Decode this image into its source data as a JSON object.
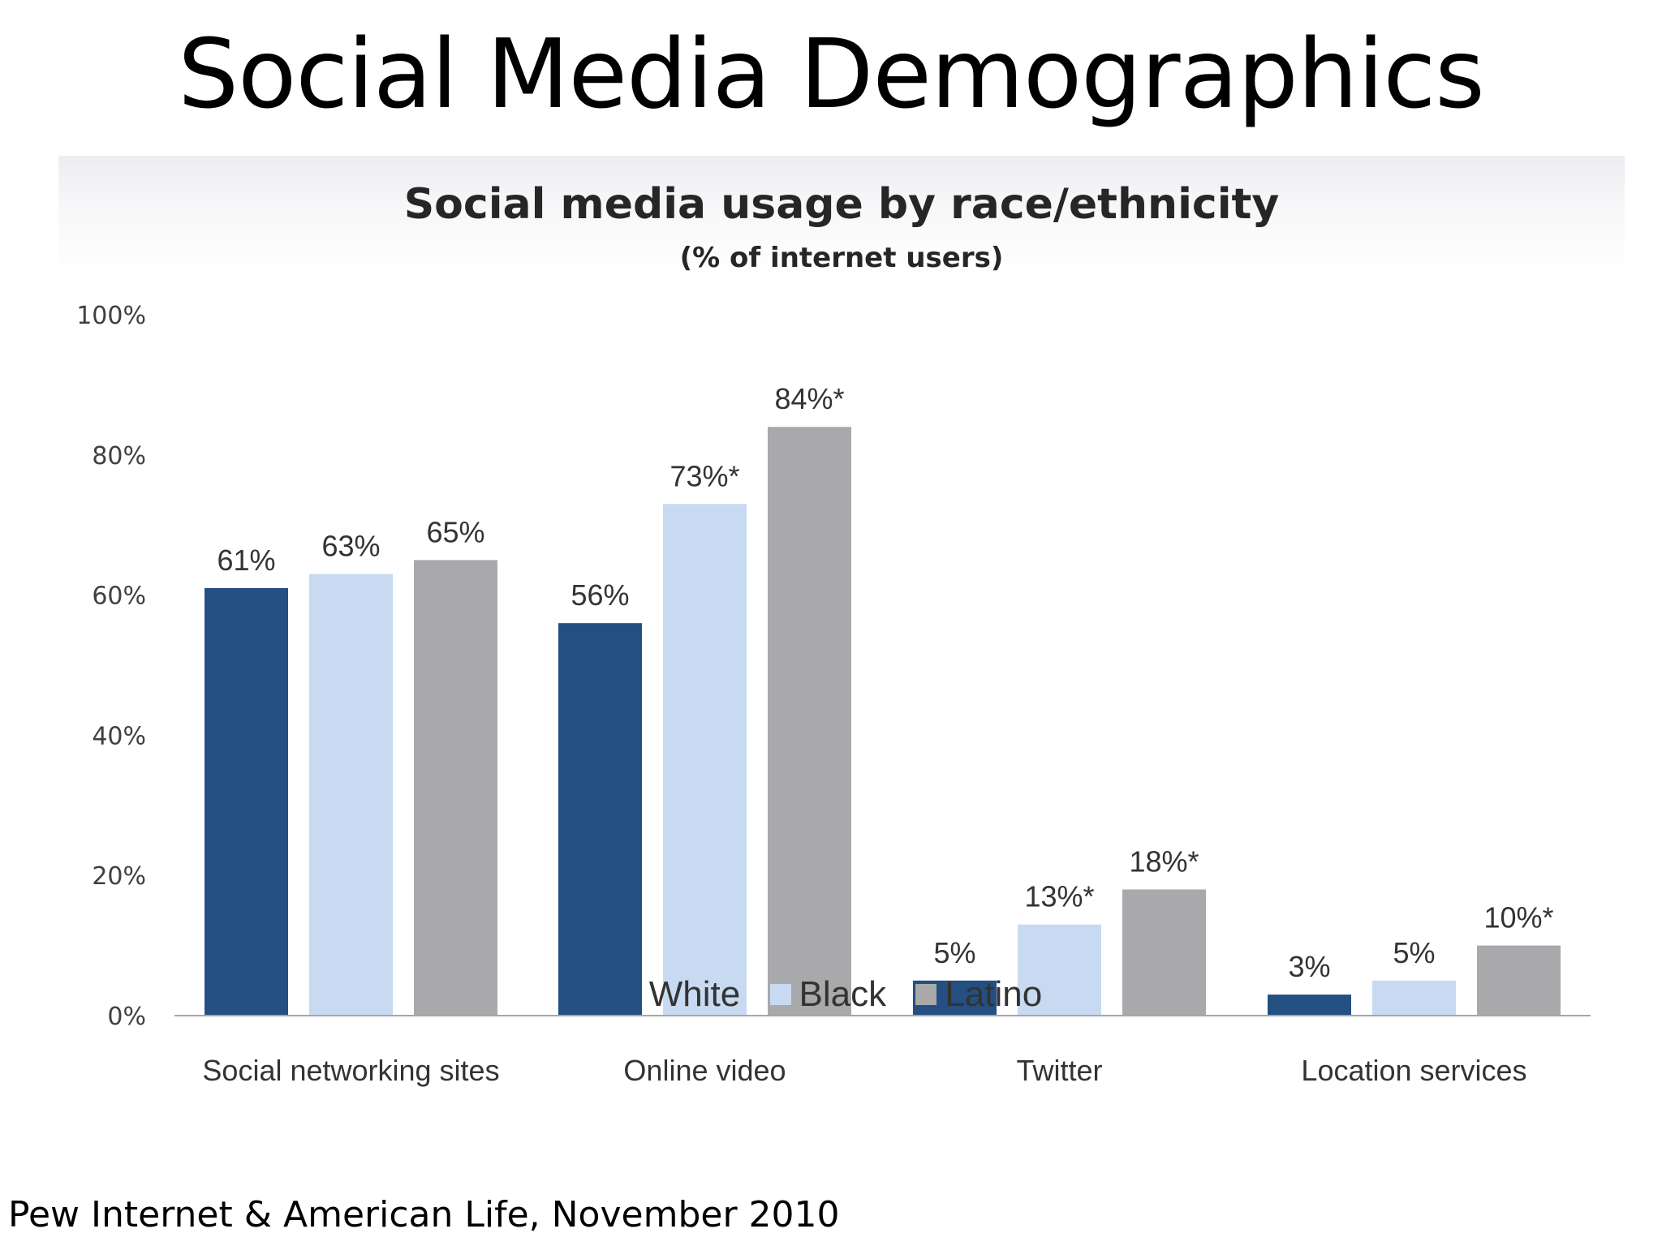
{
  "slide": {
    "title": "Social Media Demographics",
    "source": "Pew Internet & American Life, November 2010"
  },
  "chart_data": {
    "type": "bar",
    "title": "Social media usage by race/ethnicity",
    "subtitle": "(% of internet users)",
    "categories": [
      "Social networking sites",
      "Online video",
      "Twitter",
      "Location services"
    ],
    "series": [
      {
        "name": "White",
        "color": "#244f83",
        "values": [
          61,
          56,
          5,
          3
        ],
        "labels": [
          "61%",
          "56%",
          "5%",
          "3%"
        ]
      },
      {
        "name": "Black",
        "color": "#c7daf1",
        "values": [
          63,
          73,
          13,
          5
        ],
        "labels": [
          "63%",
          "73%*",
          "13%*",
          "5%"
        ]
      },
      {
        "name": "Latino",
        "color": "#a9a8aa",
        "values": [
          65,
          84,
          18,
          10
        ],
        "labels": [
          "65%",
          "84%*",
          "18%*",
          "10%*"
        ]
      }
    ],
    "yticks": [
      "0%",
      "20%",
      "40%",
      "60%",
      "80%",
      "100%"
    ],
    "ylim": [
      0,
      100
    ],
    "grid": false,
    "legend_position": "bottom"
  }
}
